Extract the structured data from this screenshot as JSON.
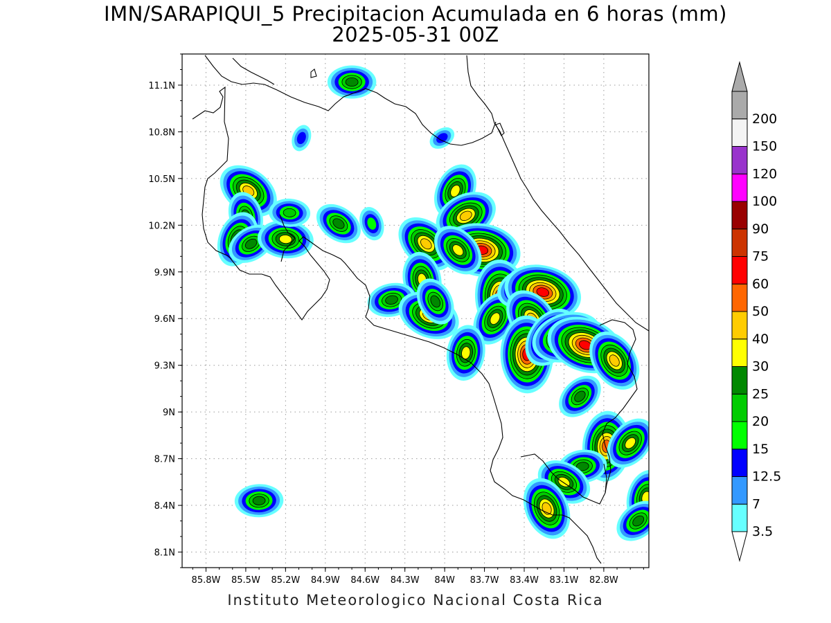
{
  "title": {
    "line1": "IMN/SARAPIQUI_5 Precipitacion Acumulada en 6 horas (mm)",
    "line2": "2025-05-31 00Z"
  },
  "credit": "Instituto Meteorologico Nacional Costa Rica",
  "map": {
    "lon_range": [
      -85.98,
      -82.46
    ],
    "lat_range": [
      8.0,
      11.3
    ],
    "x_ticks": [
      {
        "lon": -85.8,
        "label": "85.8W"
      },
      {
        "lon": -85.5,
        "label": "85.5W"
      },
      {
        "lon": -85.2,
        "label": "85.2W"
      },
      {
        "lon": -84.9,
        "label": "84.9W"
      },
      {
        "lon": -84.6,
        "label": "84.6W"
      },
      {
        "lon": -84.3,
        "label": "84.3W"
      },
      {
        "lon": -84.0,
        "label": "84W"
      },
      {
        "lon": -83.7,
        "label": "83.7W"
      },
      {
        "lon": -83.4,
        "label": "83.4W"
      },
      {
        "lon": -83.1,
        "label": "83.1W"
      },
      {
        "lon": -82.8,
        "label": "82.8W"
      }
    ],
    "y_ticks": [
      {
        "lat": 11.1,
        "label": "11.1N"
      },
      {
        "lat": 10.8,
        "label": "10.8N"
      },
      {
        "lat": 10.5,
        "label": "10.5N"
      },
      {
        "lat": 10.2,
        "label": "10.2N"
      },
      {
        "lat": 9.9,
        "label": "9.9N"
      },
      {
        "lat": 9.6,
        "label": "9.6N"
      },
      {
        "lat": 9.3,
        "label": "9.3N"
      },
      {
        "lat": 9.0,
        "label": "9N"
      },
      {
        "lat": 8.7,
        "label": "8.7N"
      },
      {
        "lat": 8.4,
        "label": "8.4N"
      },
      {
        "lat": 8.1,
        "label": "8.1N"
      }
    ]
  },
  "colorbar": {
    "levels": [
      {
        "label": "3.5",
        "color": "#66ffff"
      },
      {
        "label": "7",
        "color": "#3399ff"
      },
      {
        "label": "12.5",
        "color": "#0000ff"
      },
      {
        "label": "15",
        "color": "#00ff00"
      },
      {
        "label": "20",
        "color": "#00cc00"
      },
      {
        "label": "25",
        "color": "#008800"
      },
      {
        "label": "30",
        "color": "#ffff00"
      },
      {
        "label": "40",
        "color": "#ffcc00"
      },
      {
        "label": "50",
        "color": "#ff6600"
      },
      {
        "label": "60",
        "color": "#ff0000"
      },
      {
        "label": "75",
        "color": "#cc3300"
      },
      {
        "label": "90",
        "color": "#990000"
      },
      {
        "label": "100",
        "color": "#ff00ff"
      },
      {
        "label": "120",
        "color": "#9933cc"
      },
      {
        "label": "150",
        "color": "#f4f4f4"
      },
      {
        "label": "200",
        "color": "#aaaaaa"
      }
    ]
  },
  "precip_cells": [
    {
      "lon": -84.7,
      "lat": 11.12,
      "level": 5
    },
    {
      "lon": -85.48,
      "lat": 10.42,
      "level": 7
    },
    {
      "lon": -85.5,
      "lat": 10.26,
      "level": 5
    },
    {
      "lon": -85.56,
      "lat": 10.11,
      "level": 6
    },
    {
      "lon": -85.46,
      "lat": 10.08,
      "level": 5
    },
    {
      "lon": -85.2,
      "lat": 10.11,
      "level": 6
    },
    {
      "lon": -84.14,
      "lat": 10.08,
      "level": 7
    },
    {
      "lon": -84.17,
      "lat": 9.85,
      "level": 6
    },
    {
      "lon": -83.92,
      "lat": 10.42,
      "level": 6
    },
    {
      "lon": -83.84,
      "lat": 10.26,
      "level": 7
    },
    {
      "lon": -83.72,
      "lat": 10.04,
      "level": 9
    },
    {
      "lon": -83.9,
      "lat": 10.04,
      "level": 6
    },
    {
      "lon": -83.57,
      "lat": 9.73,
      "level": 9
    },
    {
      "lon": -83.62,
      "lat": 9.6,
      "level": 6
    },
    {
      "lon": -83.4,
      "lat": 9.8,
      "level": 6
    },
    {
      "lon": -83.26,
      "lat": 9.77,
      "level": 9
    },
    {
      "lon": -83.34,
      "lat": 9.6,
      "level": 7
    },
    {
      "lon": -83.38,
      "lat": 9.37,
      "level": 9
    },
    {
      "lon": -83.2,
      "lat": 9.48,
      "level": 7
    },
    {
      "lon": -83.08,
      "lat": 9.48,
      "level": 8
    },
    {
      "lon": -82.94,
      "lat": 9.43,
      "level": 9
    },
    {
      "lon": -82.72,
      "lat": 9.33,
      "level": 7
    },
    {
      "lon": -82.78,
      "lat": 8.78,
      "level": 8
    },
    {
      "lon": -82.6,
      "lat": 8.8,
      "level": 6
    },
    {
      "lon": -84.4,
      "lat": 9.72,
      "level": 5
    },
    {
      "lon": -84.12,
      "lat": 9.62,
      "level": 7
    },
    {
      "lon": -84.07,
      "lat": 9.71,
      "level": 5
    },
    {
      "lon": -83.84,
      "lat": 9.38,
      "level": 6
    },
    {
      "lon": -82.98,
      "lat": 9.1,
      "level": 5
    },
    {
      "lon": -82.96,
      "lat": 8.65,
      "level": 5
    },
    {
      "lon": -83.1,
      "lat": 8.55,
      "level": 6
    },
    {
      "lon": -83.23,
      "lat": 8.38,
      "level": 7
    },
    {
      "lon": -82.48,
      "lat": 8.45,
      "level": 6
    },
    {
      "lon": -82.54,
      "lat": 8.3,
      "level": 5
    },
    {
      "lon": -85.4,
      "lat": 8.43,
      "level": 5
    },
    {
      "lon": -84.8,
      "lat": 10.21,
      "level": 5
    },
    {
      "lon": -84.55,
      "lat": 10.21,
      "level": 3
    },
    {
      "lon": -85.08,
      "lat": 10.76,
      "level": 2
    },
    {
      "lon": -84.02,
      "lat": 10.76,
      "level": 2
    },
    {
      "lon": -85.17,
      "lat": 10.28,
      "level": 4
    }
  ]
}
